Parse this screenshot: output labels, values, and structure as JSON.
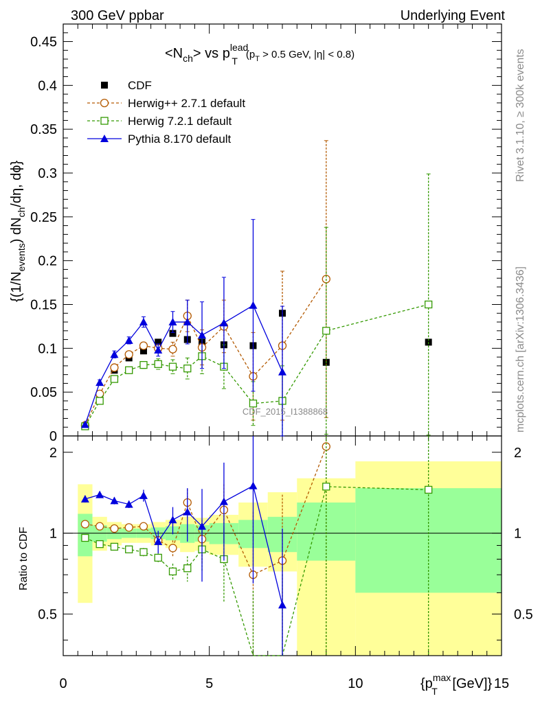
{
  "header": {
    "left_label": "300 GeV ppbar",
    "right_label": "Underlying Event",
    "side_label_top": "Rivet 3.1.10, ≥ 300k events",
    "side_label_bottom": "mcplots.cern.ch [arXiv:1306.3436]",
    "watermark": "CDF_2015_I1388868"
  },
  "chart_data": {
    "type": "scatter",
    "title": {
      "prefix": "<N",
      "sub1": "ch",
      "mid": "> vs p",
      "sup": "lead",
      "sub2": "T",
      "cut_prefix": "(p",
      "cut_sub": "T",
      "cut_rest": " > 0.5 GeV, |η| < 0.8)"
    },
    "ylabel_main": {
      "part1": "{(1/N",
      "sub1": "events",
      "part2": ") dN",
      "sub2": "ch",
      "part3": "/dη, dϕ}"
    },
    "ylabel_ratio": "Ratio to CDF",
    "xlabel": {
      "part1": "{p",
      "sup": "max",
      "sub": "T",
      "part2": " [GeV]}"
    },
    "xlim": [
      0,
      15
    ],
    "ylim_main": [
      0,
      0.47
    ],
    "ylim_ratio": [
      0.35,
      2.3
    ],
    "xticks": [
      "0",
      "5",
      "10",
      "15"
    ],
    "yticks_main": [
      "0",
      "0.05",
      "0.1",
      "0.15",
      "0.2",
      "0.25",
      "0.3",
      "0.35",
      "0.4",
      "0.45"
    ],
    "yticks_ratio": [
      "0.5",
      "1",
      "2"
    ],
    "legend_position": "top-left",
    "series": [
      {
        "name": "CDF",
        "color": "#000000",
        "marker": "filled-square",
        "x": [
          0.75,
          1.25,
          1.75,
          2.25,
          2.75,
          3.25,
          3.75,
          4.25,
          4.75,
          5.5,
          6.5,
          7.5,
          9.0,
          12.5
        ],
        "y": [
          0.011,
          0.045,
          0.075,
          0.089,
          0.097,
          0.107,
          0.117,
          0.11,
          0.107,
          0.104,
          0.103,
          0.14,
          0.084,
          0.107
        ]
      },
      {
        "name": "Herwig++ 2.7.1 default",
        "color": "#b35900",
        "marker": "open-circle",
        "x": [
          0.75,
          1.25,
          1.75,
          2.25,
          2.75,
          3.25,
          3.75,
          4.25,
          4.75,
          5.5,
          6.5,
          7.5,
          9.0
        ],
        "y": [
          0.012,
          0.048,
          0.078,
          0.093,
          0.103,
          0.1,
          0.099,
          0.137,
          0.101,
          0.125,
          0.068,
          0.103,
          0.179
        ],
        "err": [
          0.001,
          0.002,
          0.003,
          0.003,
          0.004,
          0.005,
          0.008,
          0.018,
          0.02,
          0.03,
          0.05,
          0.085,
          0.158
        ],
        "ratio": [
          1.08,
          1.06,
          1.04,
          1.05,
          1.06,
          0.94,
          0.88,
          1.3,
          0.95,
          1.22,
          0.7,
          0.79,
          2.1
        ],
        "ratio_err": [
          0.02,
          0.02,
          0.03,
          0.02,
          0.03,
          0.03,
          0.06,
          0.16,
          0.17,
          0.3,
          0.5,
          0.6,
          1.9
        ]
      },
      {
        "name": "Herwig 7.2.1 default",
        "color": "#339900",
        "marker": "open-square",
        "x": [
          0.75,
          1.25,
          1.75,
          2.25,
          2.75,
          3.25,
          3.75,
          4.25,
          4.75,
          5.5,
          6.5,
          7.5,
          9.0,
          12.5
        ],
        "y": [
          0.011,
          0.04,
          0.065,
          0.075,
          0.081,
          0.082,
          0.079,
          0.077,
          0.091,
          0.079,
          0.037,
          0.04,
          0.12,
          0.15
        ],
        "err": [
          0.001,
          0.002,
          0.003,
          0.003,
          0.004,
          0.006,
          0.008,
          0.012,
          0.02,
          0.025,
          0.025,
          0.04,
          0.118,
          0.149
        ],
        "ratio": [
          0.96,
          0.91,
          0.89,
          0.87,
          0.85,
          0.81,
          0.72,
          0.74,
          0.87,
          0.8,
          0.31,
          0.3,
          1.49,
          1.45
        ],
        "ratio_err": [
          0.02,
          0.02,
          0.02,
          0.02,
          0.03,
          0.03,
          0.05,
          0.08,
          0.15,
          0.25,
          0.3,
          0.4,
          1.4,
          1.4
        ]
      },
      {
        "name": "Pythia 8.170 default",
        "color": "#0000dd",
        "marker": "filled-triangle",
        "x": [
          0.75,
          1.25,
          1.75,
          2.25,
          2.75,
          3.25,
          3.75,
          4.25,
          4.75,
          5.5,
          6.5,
          7.5
        ],
        "y": [
          0.013,
          0.061,
          0.093,
          0.109,
          0.13,
          0.098,
          0.13,
          0.13,
          0.115,
          0.129,
          0.149,
          0.073
        ],
        "err": [
          0.001,
          0.003,
          0.004,
          0.004,
          0.006,
          0.007,
          0.012,
          0.025,
          0.038,
          0.052,
          0.098,
          0.075
        ],
        "ratio": [
          1.34,
          1.39,
          1.32,
          1.28,
          1.38,
          0.93,
          1.12,
          1.2,
          1.06,
          1.31,
          1.5,
          0.54
        ],
        "ratio_err": [
          0.04,
          0.04,
          0.04,
          0.04,
          0.07,
          0.09,
          0.13,
          0.27,
          0.4,
          0.52,
          0.85,
          0.5
        ]
      }
    ],
    "ratio_bands": {
      "bin_edges": [
        0.5,
        1.0,
        1.5,
        2.0,
        2.5,
        3.0,
        3.5,
        4.0,
        4.5,
        5.0,
        6.0,
        7.0,
        8.0,
        10.0,
        15.0
      ],
      "green_low": [
        0.82,
        0.93,
        0.95,
        0.96,
        0.96,
        0.95,
        0.94,
        0.92,
        0.93,
        0.91,
        0.88,
        0.85,
        0.79,
        0.6
      ],
      "green_high": [
        1.18,
        1.07,
        1.05,
        1.04,
        1.04,
        1.05,
        1.06,
        1.08,
        1.07,
        1.09,
        1.12,
        1.15,
        1.3,
        1.47
      ],
      "yellow_low": [
        0.55,
        0.86,
        0.9,
        0.92,
        0.92,
        0.9,
        0.88,
        0.85,
        0.86,
        0.83,
        0.75,
        0.72,
        0.35,
        0.35
      ],
      "yellow_high": [
        1.52,
        1.15,
        1.1,
        1.08,
        1.08,
        1.1,
        1.12,
        1.15,
        1.14,
        1.17,
        1.3,
        1.42,
        1.6,
        1.85
      ]
    }
  }
}
